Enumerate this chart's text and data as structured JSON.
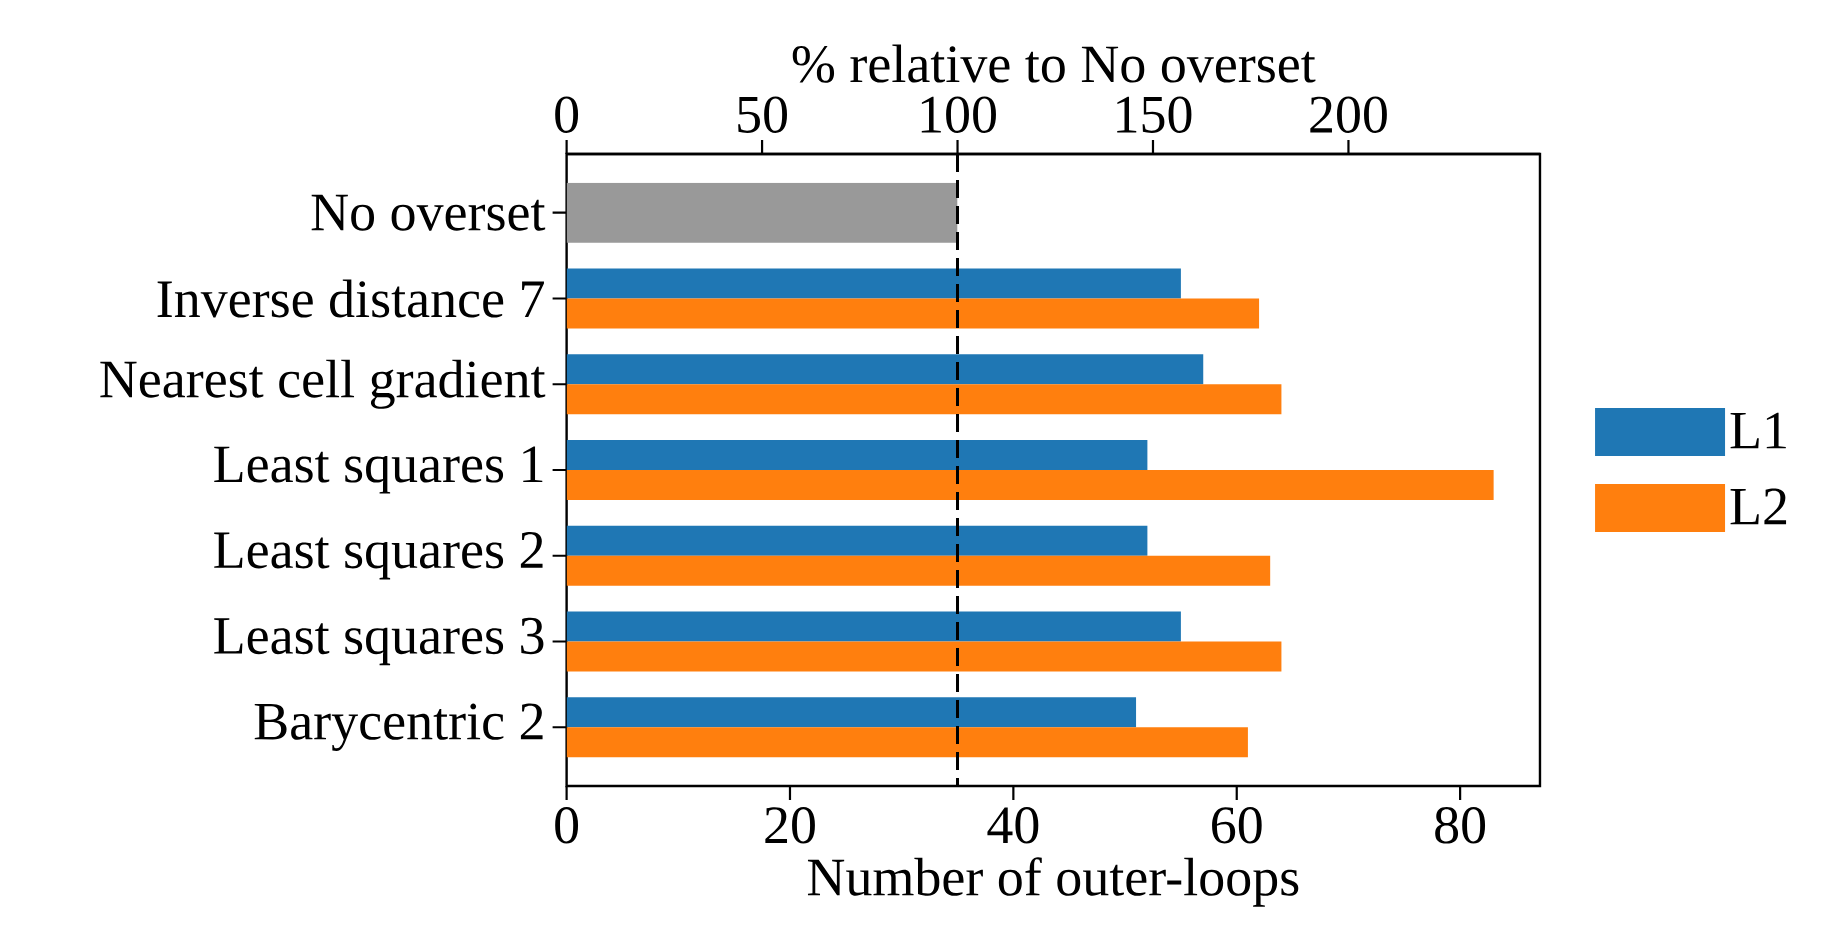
{
  "chart_data": {
    "type": "bar",
    "orientation": "horizontal",
    "xlabel": "Number of outer-loops",
    "x2label": "% relative to No overset",
    "categories": [
      "No overset",
      "Inverse distance 7",
      "Nearest cell gradient",
      "Least squares 1",
      "Least squares 2",
      "Least squares 3",
      "Barycentric 2"
    ],
    "series": [
      {
        "color": "#999999",
        "values": [
          35,
          null,
          null,
          null,
          null,
          null,
          null
        ]
      },
      {
        "name": "L1",
        "color": "#1f77b4",
        "values": [
          null,
          55,
          57,
          52,
          52,
          55,
          51
        ]
      },
      {
        "name": "L2",
        "color": "#ff7f0e",
        "values": [
          null,
          62,
          64,
          83,
          63,
          64,
          61
        ]
      }
    ],
    "xlim": [
      0,
      87.15
    ],
    "xticks": [
      0,
      20,
      40,
      60,
      80
    ],
    "x2lim": [
      0,
      249
    ],
    "x2ticks": [
      0,
      50,
      100,
      150,
      200
    ],
    "ref_lines": [
      {
        "axis": "x",
        "value": 35,
        "color": "#000000",
        "line_style": "dashed"
      }
    ],
    "legend": "right"
  }
}
